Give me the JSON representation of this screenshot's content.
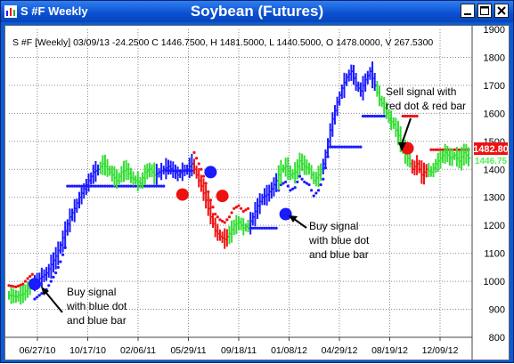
{
  "window": {
    "title": "S #F Weekly",
    "chart_title": "Soybean (Futures)",
    "buttons": [
      "minimize",
      "maximize",
      "close"
    ]
  },
  "info_line": "S #F [Weekly] 03/09/13  -24.2500  C 1446.7500, H 1481.5000, L 1440.5000, O 1478.0000, V 267.5300",
  "price_labels": {
    "last": "1482.80",
    "second": "1446.75"
  },
  "colors": {
    "blue": "#1a1aff",
    "green": "#33dd33",
    "red": "#ee1111",
    "grid": "#8a8a8a",
    "label_red": "#ee1111",
    "label_green": "#55ee55"
  },
  "annotations": [
    {
      "lines": [
        "Sell signal with",
        "red dot & red bar"
      ]
    },
    {
      "lines": [
        "Buy signal",
        "with blue dot",
        "and blue bar"
      ]
    },
    {
      "lines": [
        "Buy signal",
        "with blue dot",
        "and blue bar"
      ]
    }
  ],
  "chart_data": {
    "type": "bar",
    "title": "",
    "ylim": [
      800,
      1900
    ],
    "yticks": [
      800,
      900,
      1000,
      1100,
      1200,
      1300,
      1400,
      1500,
      1600,
      1700,
      1800,
      1900
    ],
    "xlabels": [
      "06/27/10",
      "10/17/10",
      "02/06/11",
      "05/29/11",
      "09/18/11",
      "01/08/12",
      "04/29/12",
      "08/19/12",
      "12/09/12"
    ],
    "grid": true,
    "close_path": [
      [
        0,
        950
      ],
      [
        3,
        945
      ],
      [
        6,
        955
      ],
      [
        8,
        975
      ],
      [
        10,
        990
      ],
      [
        13,
        1010
      ],
      [
        16,
        1030
      ],
      [
        18,
        1060
      ],
      [
        20,
        1090
      ],
      [
        22,
        1130
      ],
      [
        24,
        1180
      ],
      [
        26,
        1230
      ],
      [
        28,
        1260
      ],
      [
        30,
        1300
      ],
      [
        32,
        1330
      ],
      [
        34,
        1360
      ],
      [
        36,
        1390
      ],
      [
        38,
        1400
      ],
      [
        40,
        1420
      ],
      [
        42,
        1400
      ],
      [
        44,
        1380
      ],
      [
        46,
        1360
      ],
      [
        48,
        1390
      ],
      [
        50,
        1400
      ],
      [
        52,
        1370
      ],
      [
        54,
        1360
      ],
      [
        56,
        1350
      ],
      [
        58,
        1390
      ],
      [
        60,
        1400
      ],
      [
        62,
        1380
      ],
      [
        64,
        1390
      ],
      [
        66,
        1400
      ],
      [
        68,
        1410
      ],
      [
        70,
        1395
      ],
      [
        72,
        1380
      ],
      [
        74,
        1395
      ],
      [
        76,
        1400
      ],
      [
        78,
        1420
      ],
      [
        80,
        1380
      ],
      [
        82,
        1340
      ],
      [
        84,
        1290
      ],
      [
        86,
        1230
      ],
      [
        88,
        1180
      ],
      [
        90,
        1160
      ],
      [
        92,
        1150
      ],
      [
        94,
        1170
      ],
      [
        96,
        1200
      ],
      [
        98,
        1210
      ],
      [
        100,
        1190
      ],
      [
        102,
        1200
      ],
      [
        104,
        1230
      ],
      [
        106,
        1270
      ],
      [
        108,
        1300
      ],
      [
        110,
        1310
      ],
      [
        112,
        1330
      ],
      [
        114,
        1360
      ],
      [
        116,
        1400
      ],
      [
        118,
        1410
      ],
      [
        120,
        1380
      ],
      [
        122,
        1390
      ],
      [
        124,
        1430
      ],
      [
        126,
        1410
      ],
      [
        128,
        1400
      ],
      [
        130,
        1360
      ],
      [
        132,
        1380
      ],
      [
        134,
        1420
      ],
      [
        136,
        1500
      ],
      [
        138,
        1580
      ],
      [
        140,
        1640
      ],
      [
        142,
        1690
      ],
      [
        144,
        1730
      ],
      [
        146,
        1750
      ],
      [
        148,
        1700
      ],
      [
        150,
        1680
      ],
      [
        152,
        1720
      ],
      [
        154,
        1750
      ],
      [
        156,
        1700
      ],
      [
        158,
        1650
      ],
      [
        160,
        1620
      ],
      [
        162,
        1580
      ],
      [
        164,
        1560
      ],
      [
        166,
        1520
      ],
      [
        168,
        1470
      ],
      [
        170,
        1440
      ],
      [
        172,
        1400
      ],
      [
        174,
        1420
      ],
      [
        176,
        1380
      ],
      [
        178,
        1400
      ],
      [
        180,
        1390
      ],
      [
        182,
        1420
      ],
      [
        184,
        1440
      ],
      [
        186,
        1460
      ],
      [
        188,
        1440
      ],
      [
        190,
        1450
      ],
      [
        192,
        1430
      ],
      [
        194,
        1460
      ],
      [
        196,
        1440
      ]
    ],
    "segments": [
      {
        "from": 0,
        "to": 10,
        "color": "green"
      },
      {
        "from": 11,
        "to": 38,
        "color": "blue"
      },
      {
        "from": 39,
        "to": 62,
        "color": "green"
      },
      {
        "from": 63,
        "to": 78,
        "color": "blue"
      },
      {
        "from": 79,
        "to": 93,
        "color": "red"
      },
      {
        "from": 94,
        "to": 102,
        "color": "green"
      },
      {
        "from": 103,
        "to": 114,
        "color": "blue"
      },
      {
        "from": 115,
        "to": 133,
        "color": "green"
      },
      {
        "from": 134,
        "to": 156,
        "color": "blue"
      },
      {
        "from": 157,
        "to": 171,
        "color": "green"
      },
      {
        "from": 172,
        "to": 178,
        "color": "red"
      },
      {
        "from": 179,
        "to": 196,
        "color": "green"
      }
    ],
    "stops": [
      {
        "from": 0,
        "to": 10,
        "offset": 35,
        "color": "red"
      },
      {
        "from": 11,
        "to": 24,
        "offset": -60,
        "color": "blue",
        "ramp": true
      },
      {
        "from": 25,
        "to": 66,
        "value": 1340,
        "color": "blue"
      },
      {
        "from": 67,
        "to": 78,
        "value": 1395,
        "color": "blue"
      },
      {
        "from": 79,
        "to": 102,
        "offset": 60,
        "color": "red",
        "ramp": true
      },
      {
        "from": 103,
        "to": 114,
        "value": 1190,
        "color": "blue"
      },
      {
        "from": 115,
        "to": 136,
        "offset": -55,
        "color": "blue",
        "ramp": true
      },
      {
        "from": 137,
        "to": 150,
        "value": 1480,
        "color": "blue"
      },
      {
        "from": 151,
        "to": 160,
        "value": 1590,
        "color": "blue"
      },
      {
        "from": 168,
        "to": 174,
        "value": 1590,
        "color": "red"
      },
      {
        "from": 180,
        "to": 196,
        "value": 1470,
        "color": "red"
      }
    ],
    "signals": [
      {
        "x": 11,
        "value": 990,
        "color": "blue"
      },
      {
        "x": 74,
        "value": 1310,
        "color": "red"
      },
      {
        "x": 86,
        "value": 1390,
        "color": "blue"
      },
      {
        "x": 91,
        "value": 1305,
        "color": "red"
      },
      {
        "x": 118,
        "value": 1240,
        "color": "blue"
      },
      {
        "x": 170,
        "value": 1475,
        "color": "red"
      }
    ]
  }
}
